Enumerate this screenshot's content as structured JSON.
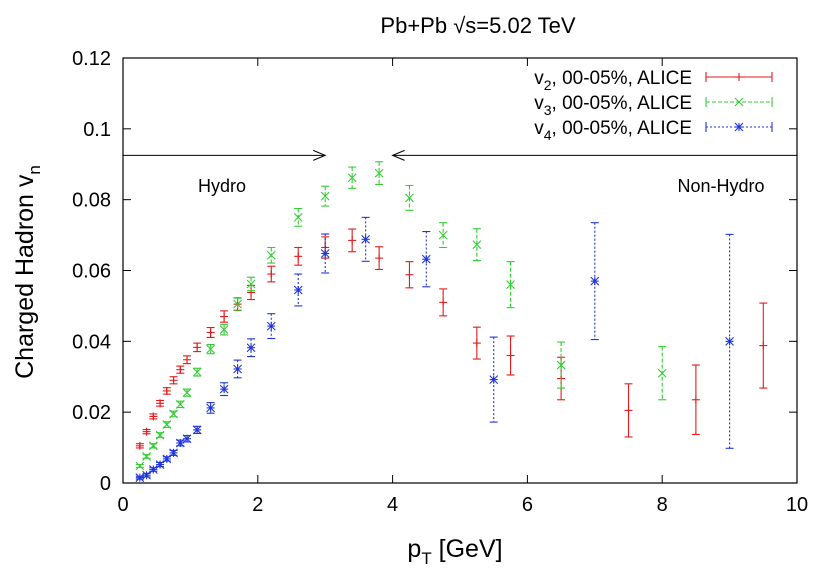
{
  "chart_data": {
    "type": "scatter",
    "title": "Pb+Pb √s=5.02 TeV",
    "xlabel": "p",
    "xlabel_sub": "T",
    "xlabel_unit": " [GeV]",
    "ylabel": "Charged Hadron v",
    "ylabel_sub": "n",
    "xlim": [
      0,
      10
    ],
    "ylim": [
      0,
      0.12
    ],
    "xticks": [
      "0",
      "2",
      "4",
      "6",
      "8",
      "10"
    ],
    "yticks": [
      "0",
      "0.02",
      "0.04",
      "0.06",
      "0.08",
      "0.1",
      "0.12"
    ],
    "grid": false,
    "legend_position": "top-right",
    "annotations": {
      "left_label": "Hydro",
      "right_label": "Non-Hydro",
      "arrow_y": 0.0925,
      "left_arrow_to_x": 3.0,
      "right_arrow_to_x": 4.0
    },
    "series": [
      {
        "name_main": "v",
        "name_sub": "2",
        "name_rest": ", 00-05%, ALICE",
        "color": "#e41a1c",
        "marker": "plus",
        "line_style": "solid",
        "points": [
          [
            0.25,
            0.0105,
            0.0006
          ],
          [
            0.35,
            0.0145,
            0.0006
          ],
          [
            0.45,
            0.0188,
            0.0007
          ],
          [
            0.55,
            0.0225,
            0.0008
          ],
          [
            0.65,
            0.026,
            0.0009
          ],
          [
            0.75,
            0.029,
            0.001
          ],
          [
            0.85,
            0.032,
            0.001
          ],
          [
            0.95,
            0.0348,
            0.0011
          ],
          [
            1.1,
            0.0383,
            0.0012
          ],
          [
            1.3,
            0.0425,
            0.0014
          ],
          [
            1.5,
            0.047,
            0.0016
          ],
          [
            1.7,
            0.0505,
            0.0018
          ],
          [
            1.9,
            0.0538,
            0.002
          ],
          [
            2.2,
            0.059,
            0.0022
          ],
          [
            2.6,
            0.064,
            0.0025
          ],
          [
            3.0,
            0.0665,
            0.003
          ],
          [
            3.4,
            0.0685,
            0.0032
          ],
          [
            3.8,
            0.0635,
            0.0032
          ],
          [
            4.25,
            0.0588,
            0.0037
          ],
          [
            4.75,
            0.051,
            0.0038
          ],
          [
            5.25,
            0.0395,
            0.0045
          ],
          [
            5.75,
            0.036,
            0.0055
          ],
          [
            6.5,
            0.0295,
            0.006
          ],
          [
            7.5,
            0.0205,
            0.0075
          ],
          [
            8.5,
            0.0235,
            0.0098
          ],
          [
            9.5,
            0.0388,
            0.012
          ]
        ]
      },
      {
        "name_main": "v",
        "name_sub": "3",
        "name_rest": ", 00-05%, ALICE",
        "color": "#33cc33",
        "marker": "cross",
        "line_style": "dashed",
        "points": [
          [
            0.25,
            0.0048,
            0.0004
          ],
          [
            0.35,
            0.0075,
            0.0005
          ],
          [
            0.45,
            0.0105,
            0.0006
          ],
          [
            0.55,
            0.0135,
            0.0007
          ],
          [
            0.65,
            0.0165,
            0.0008
          ],
          [
            0.75,
            0.0195,
            0.0008
          ],
          [
            0.85,
            0.0222,
            0.0009
          ],
          [
            0.95,
            0.0255,
            0.001
          ],
          [
            1.1,
            0.0313,
            0.0011
          ],
          [
            1.3,
            0.0378,
            0.0013
          ],
          [
            1.5,
            0.0433,
            0.0015
          ],
          [
            1.7,
            0.0505,
            0.0017
          ],
          [
            1.9,
            0.0562,
            0.0019
          ],
          [
            2.2,
            0.0643,
            0.0022
          ],
          [
            2.6,
            0.075,
            0.0025
          ],
          [
            3.0,
            0.081,
            0.0028
          ],
          [
            3.4,
            0.0862,
            0.003
          ],
          [
            3.8,
            0.0875,
            0.0032
          ],
          [
            4.25,
            0.0805,
            0.0035
          ],
          [
            4.75,
            0.07,
            0.0035
          ],
          [
            5.25,
            0.0673,
            0.0045
          ],
          [
            5.75,
            0.056,
            0.0065
          ],
          [
            6.5,
            0.0333,
            0.0065
          ],
          [
            8.0,
            0.031,
            0.0075
          ]
        ]
      },
      {
        "name_main": "v",
        "name_sub": "4",
        "name_rest": ", 00-05%, ALICE",
        "color": "#1f35d6",
        "marker": "star",
        "line_style": "dotted",
        "points": [
          [
            0.25,
            0.0015,
            0.0004
          ],
          [
            0.35,
            0.0022,
            0.0005
          ],
          [
            0.45,
            0.0038,
            0.0005
          ],
          [
            0.55,
            0.0052,
            0.0006
          ],
          [
            0.65,
            0.0068,
            0.0006
          ],
          [
            0.75,
            0.0085,
            0.0007
          ],
          [
            0.85,
            0.0113,
            0.0008
          ],
          [
            0.95,
            0.0125,
            0.0009
          ],
          [
            1.1,
            0.015,
            0.001
          ],
          [
            1.3,
            0.0212,
            0.0015
          ],
          [
            1.5,
            0.0265,
            0.0018
          ],
          [
            1.7,
            0.0322,
            0.0025
          ],
          [
            1.9,
            0.0382,
            0.0025
          ],
          [
            2.2,
            0.0443,
            0.0035
          ],
          [
            2.6,
            0.0545,
            0.0045
          ],
          [
            3.0,
            0.0648,
            0.0055
          ],
          [
            3.6,
            0.0688,
            0.0062
          ],
          [
            4.5,
            0.0632,
            0.0078
          ],
          [
            5.5,
            0.0292,
            0.012
          ],
          [
            7.0,
            0.057,
            0.0165
          ],
          [
            9.0,
            0.04,
            0.0302
          ]
        ]
      }
    ]
  }
}
